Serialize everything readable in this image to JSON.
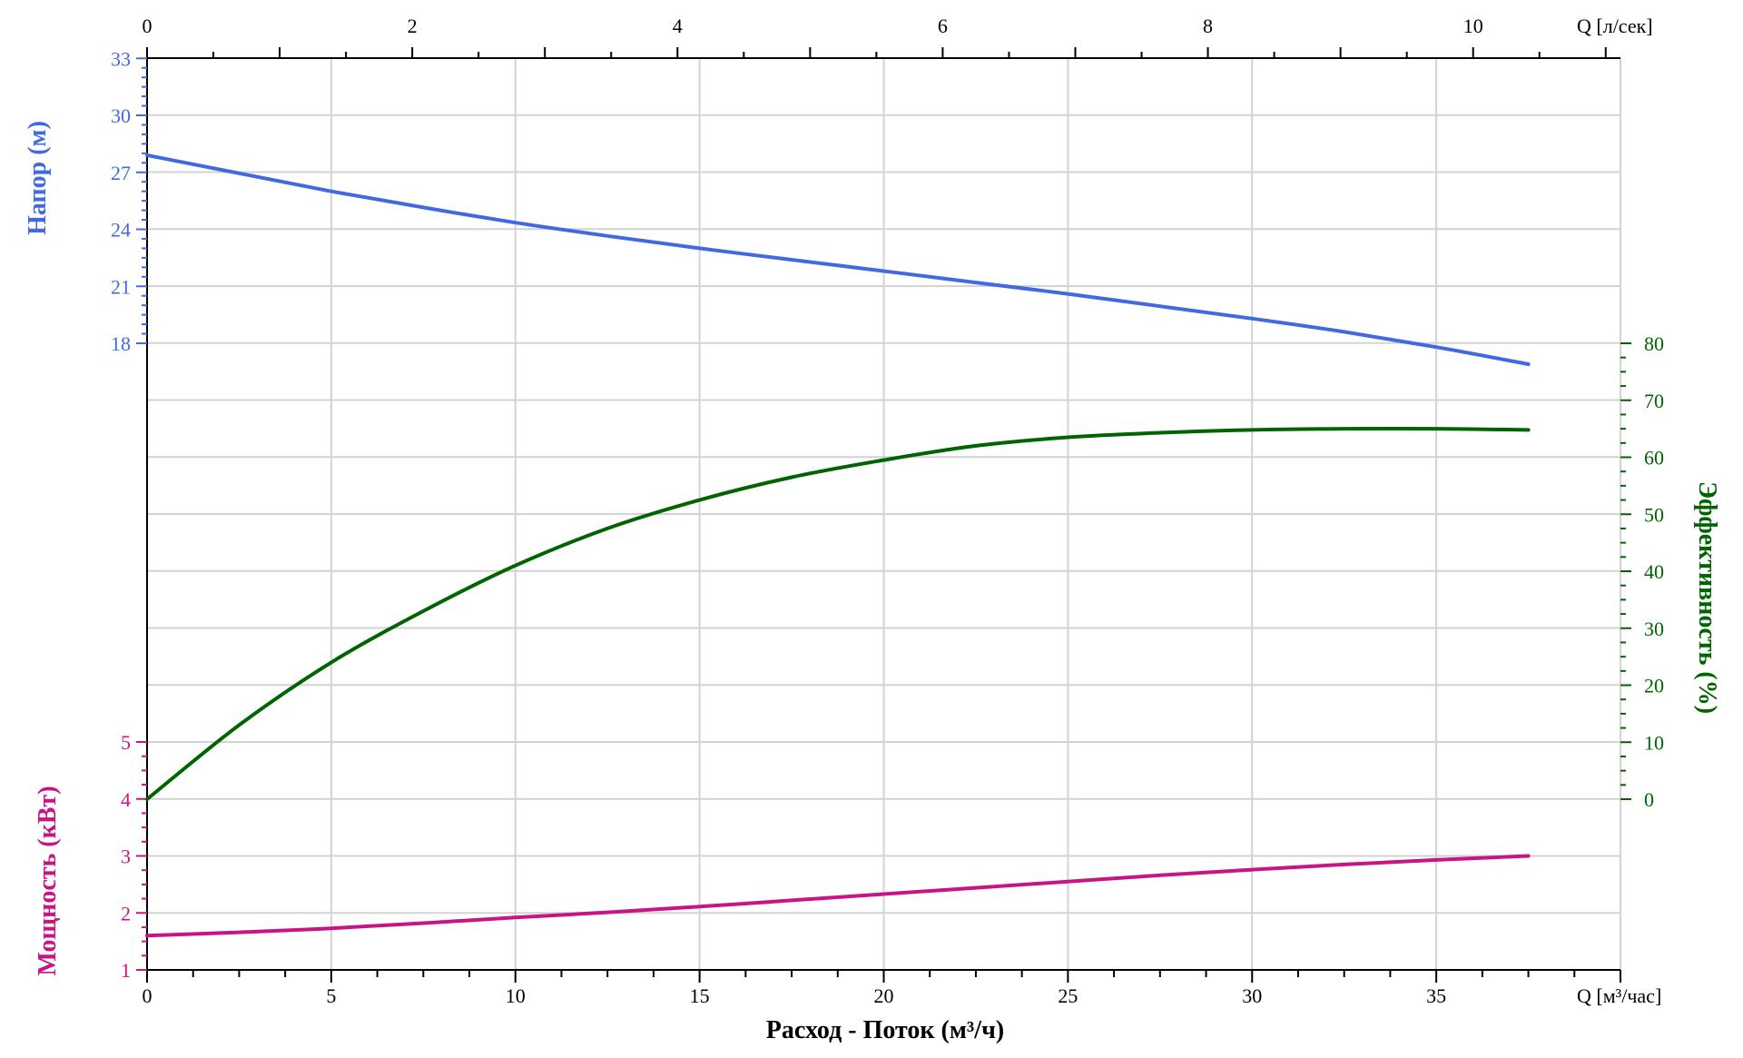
{
  "chart_data": {
    "type": "line",
    "x_label": "Расход - Поток (м³/ч)",
    "x_unit_bottom": "Q [м³/час]",
    "x_unit_top": "Q [л/сек]",
    "x_ticks": [
      0,
      5,
      10,
      15,
      20,
      25,
      30,
      35
    ],
    "x_lim": [
      0,
      40
    ],
    "x_top_ticks": [
      0,
      2,
      4,
      6,
      8,
      10
    ],
    "axes": {
      "head": {
        "label": "Напор (м)",
        "ticks": [
          18,
          21,
          24,
          27,
          30,
          33
        ],
        "color": "#4169e1"
      },
      "efficiency": {
        "label": "Эффективность (%)",
        "ticks": [
          0,
          10,
          20,
          30,
          40,
          50,
          60,
          70,
          80
        ],
        "color": "#006400"
      },
      "power": {
        "label": "Мощность (кВт)",
        "ticks": [
          1,
          2,
          3,
          4,
          5
        ],
        "color": "#c71585"
      }
    },
    "grid": true,
    "series": [
      {
        "axis": "head",
        "color": "#4169e1",
        "x": [
          0,
          2.5,
          5,
          7.5,
          10,
          12.5,
          15,
          17.5,
          20,
          22.5,
          25,
          27.5,
          30,
          32.5,
          35,
          37.5
        ],
        "y": [
          27.9,
          26.95,
          26.0,
          25.15,
          24.35,
          23.65,
          23.0,
          22.4,
          21.8,
          21.2,
          20.6,
          19.95,
          19.3,
          18.6,
          17.8,
          16.9
        ]
      },
      {
        "axis": "efficiency",
        "color": "#006400",
        "x": [
          0,
          2.5,
          5,
          7.5,
          10,
          12.5,
          15,
          17.5,
          20,
          22.5,
          25,
          27.5,
          30,
          32.5,
          35,
          37.5
        ],
        "y": [
          0,
          13,
          24,
          33,
          41,
          47.5,
          52.5,
          56.5,
          59.5,
          62,
          63.5,
          64.3,
          64.8,
          65,
          65,
          64.8
        ]
      },
      {
        "axis": "power",
        "color": "#c71585",
        "x": [
          0,
          2.5,
          5,
          7.5,
          10,
          12.5,
          15,
          17.5,
          20,
          22.5,
          25,
          27.5,
          30,
          32.5,
          35,
          37.5
        ],
        "y": [
          1.6,
          1.66,
          1.73,
          1.82,
          1.92,
          2.01,
          2.11,
          2.22,
          2.33,
          2.44,
          2.55,
          2.66,
          2.76,
          2.85,
          2.93,
          3.0
        ]
      }
    ]
  }
}
